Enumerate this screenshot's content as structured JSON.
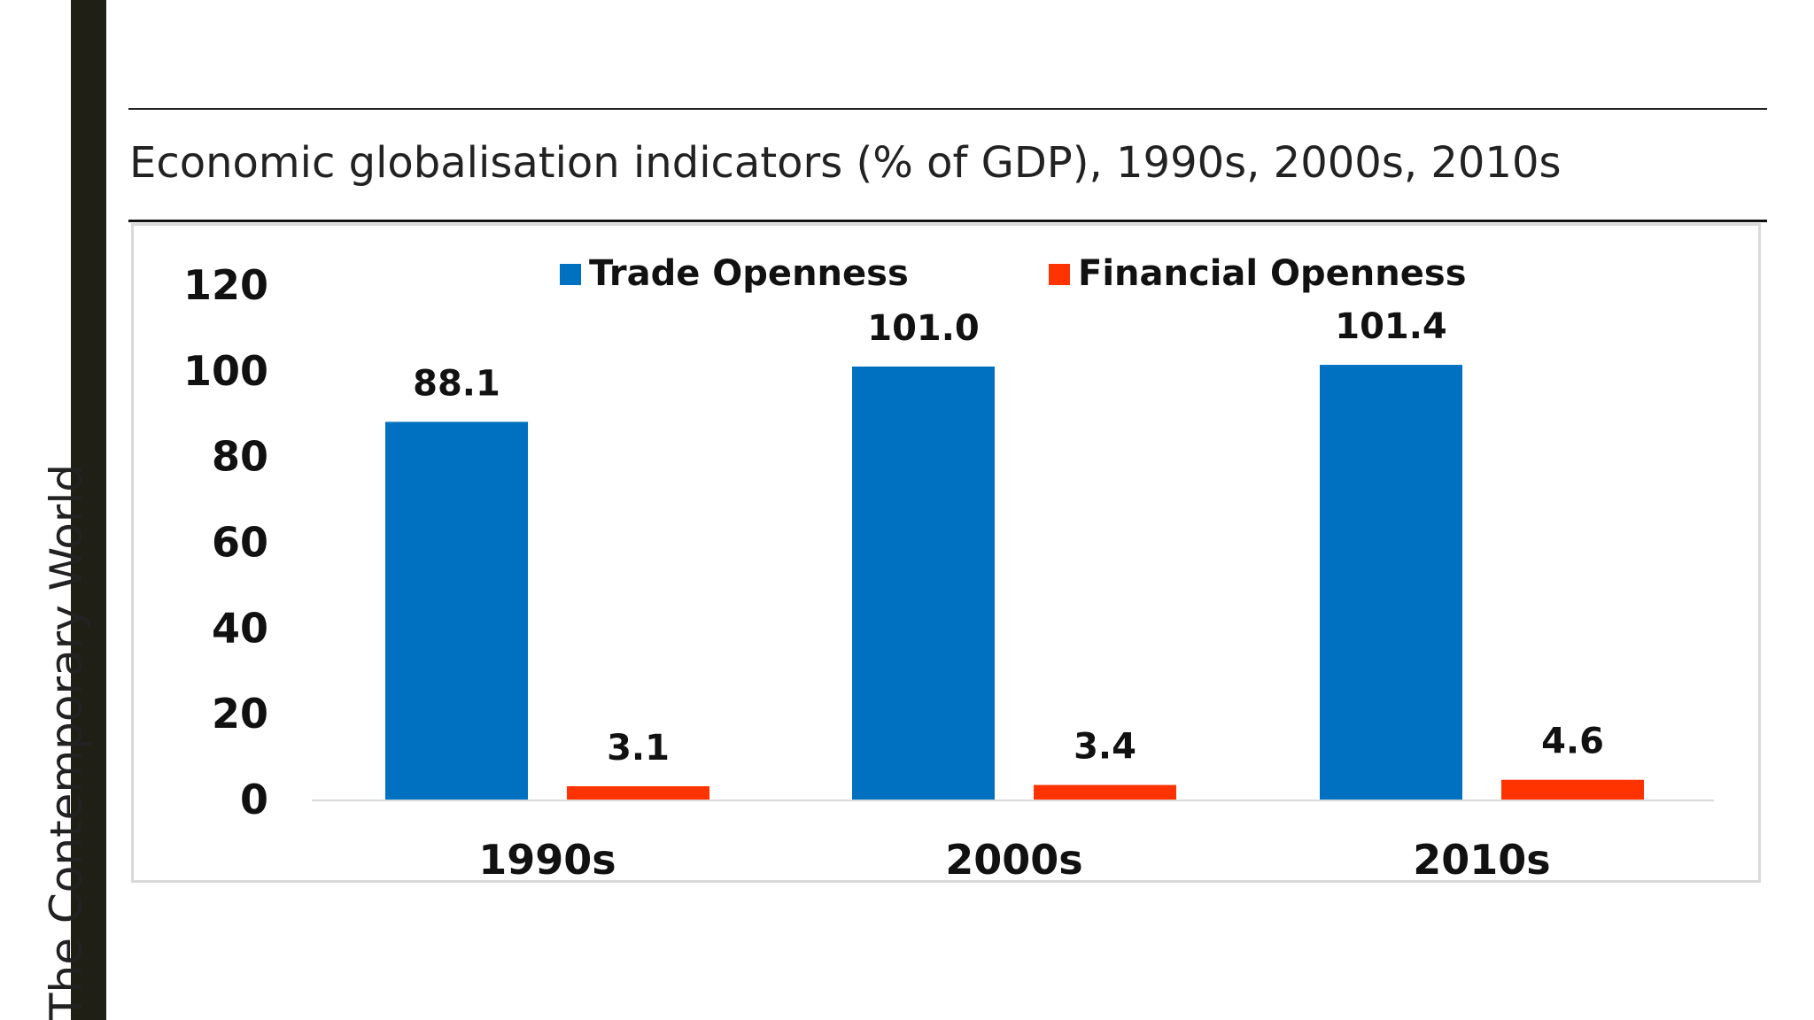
{
  "side_label": "The Contemporary World",
  "chart_data": {
    "type": "bar",
    "title": "Economic globalisation indicators (% of GDP), 1990s, 2000s, 2010s",
    "xlabel": "",
    "ylabel": "",
    "categories": [
      "1990s",
      "2000s",
      "2010s"
    ],
    "series": [
      {
        "name": "Trade Openness",
        "color": "#0070c0",
        "values": [
          88.1,
          101.0,
          101.4
        ],
        "labels": [
          "88.1",
          "101.0",
          "101.4"
        ]
      },
      {
        "name": "Financial Openness",
        "color": "#ff3300",
        "values": [
          3.1,
          3.4,
          4.6
        ],
        "labels": [
          "3.1",
          "3.4",
          "4.6"
        ]
      }
    ],
    "ylim": [
      0,
      120
    ],
    "yticks": [
      "0",
      "20",
      "40",
      "60",
      "80",
      "100",
      "120"
    ],
    "grid": false,
    "legend": "top"
  }
}
